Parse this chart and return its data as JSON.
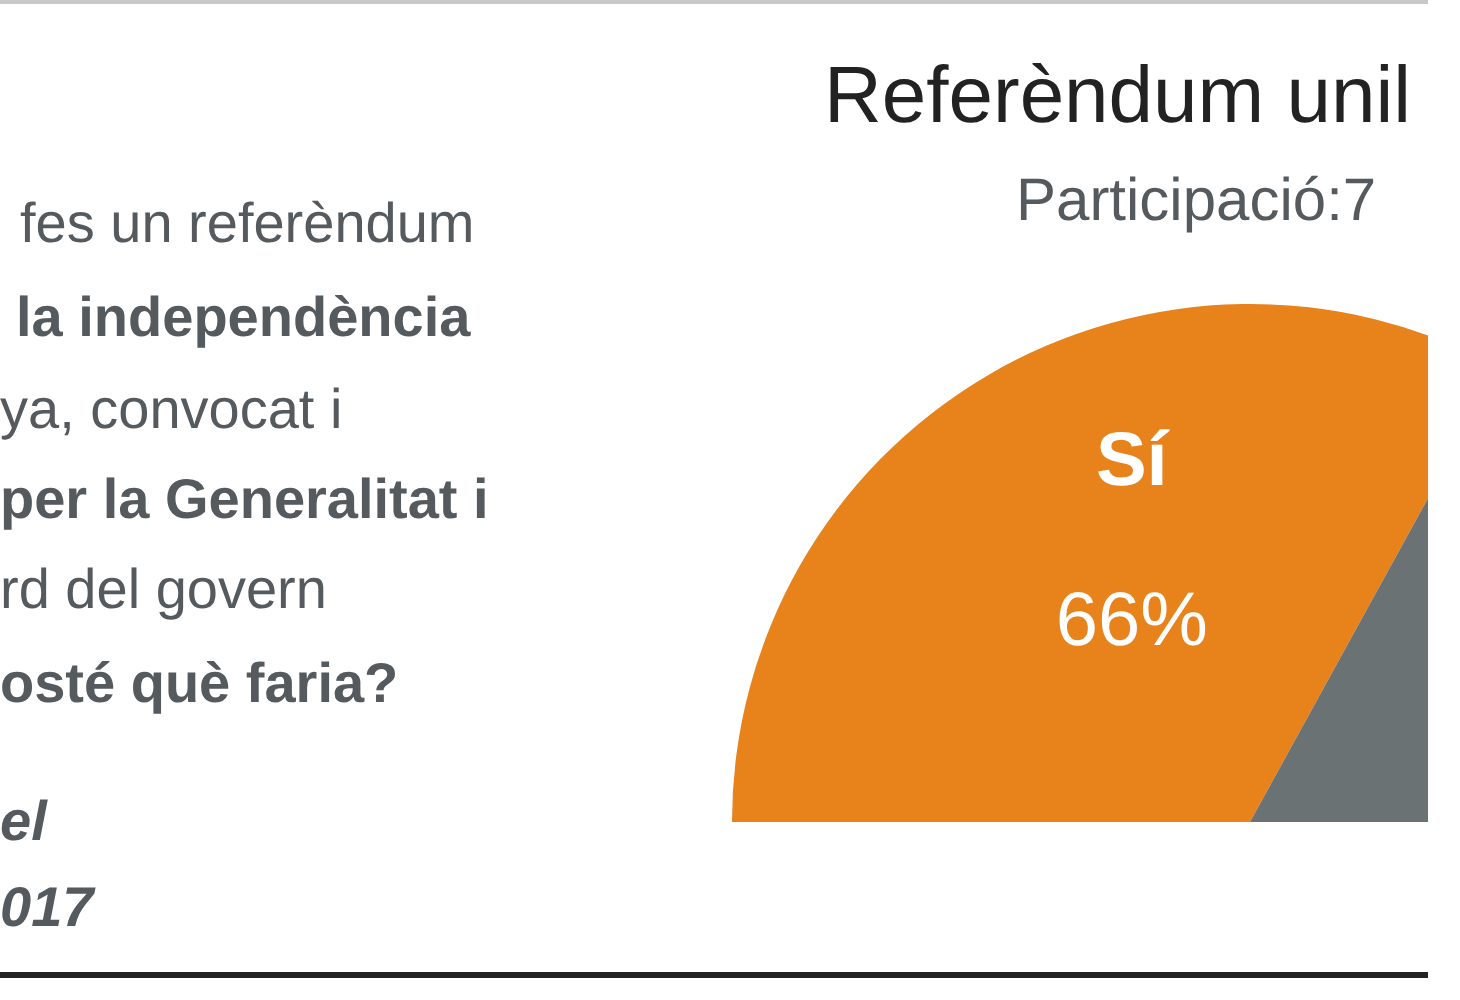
{
  "chart_data": {
    "type": "pie",
    "title": "Referèndum unil",
    "subtitle": "Participació:7",
    "categories": [
      "Sí",
      null
    ],
    "values": [
      66,
      34
    ],
    "colors": [
      "#e8821b",
      "#6b7273"
    ],
    "value_labels": [
      "66%",
      null
    ],
    "annotations": [
      "fes un referèndum",
      "la independència",
      "ya, convocat i",
      "per la Generalitat i",
      "rd del govern",
      "osté què faria?",
      "el",
      "017"
    ],
    "legend": false
  }
}
